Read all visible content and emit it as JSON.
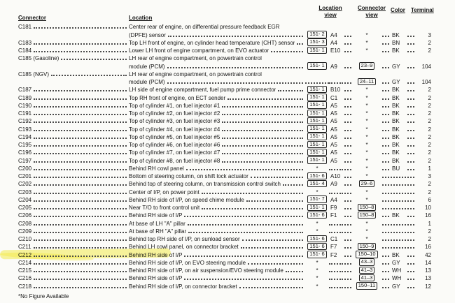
{
  "header": {
    "connector": "Connector",
    "location": "Location",
    "location_view_line1": "Location",
    "location_view_line2": "view",
    "connector_view_line1": "Connector",
    "connector_view_line2": "view",
    "color": "Color",
    "terminal": "Terminal"
  },
  "footnote": "*No Figure Available",
  "highlight_color": "#f2e93c",
  "rows": [
    {
      "id": "C181",
      "loc": [
        "Center rear of engine, on differential pressure feedback EGR",
        "(DPFE) sensor"
      ],
      "view": "151- 2",
      "grid": "A4",
      "conn": "*",
      "color": "BK",
      "term": "3"
    },
    {
      "id": "C183",
      "loc": [
        "Top LH front of engine, on cylinder head temperature (CHT) sensor"
      ],
      "view": "151- 3",
      "grid": "A4",
      "conn": "*",
      "color": "BN",
      "term": "2"
    },
    {
      "id": "C184",
      "loc": [
        "Lower LH front of engine compartment, on EVO actuator"
      ],
      "view": "151- 1",
      "grid": "E10",
      "conn": "*",
      "color": "BK",
      "term": "2"
    },
    {
      "id": "C185 (Gasoline)",
      "loc": [
        "LH rear of engine compartment, on powertrain control",
        "module (PCM)"
      ],
      "view": "151- 1",
      "grid": "A9",
      "conn": "23–9",
      "color": "GY",
      "term": "104"
    },
    {
      "id": "C185 (NGV)",
      "loc": [
        "LH rear of engine compartment, on powertrain control",
        "module (PCM)"
      ],
      "view": "",
      "grid": "",
      "conn": "24–11",
      "color": "GY",
      "term": "104"
    },
    {
      "id": "C187",
      "loc": [
        "LH side of engine compartment, fuel pump prime connector"
      ],
      "view": "151- 1",
      "grid": "B10",
      "conn": "*",
      "color": "BK",
      "term": "2"
    },
    {
      "id": "C189",
      "loc": [
        "Top RH front of engine, on ECT sender"
      ],
      "view": "151- 1",
      "grid": "C1",
      "conn": "*",
      "color": "BK",
      "term": "2"
    },
    {
      "id": "C190",
      "loc": [
        "Top of cylinder #1, on fuel injector #1"
      ],
      "view": "151- 1",
      "grid": "A5",
      "conn": "*",
      "color": "BK",
      "term": "2"
    },
    {
      "id": "C191",
      "loc": [
        "Top of cylinder #2, on fuel injector #2"
      ],
      "view": "151- 1",
      "grid": "A5",
      "conn": "*",
      "color": "BK",
      "term": "2"
    },
    {
      "id": "C192",
      "loc": [
        "Top of cylinder #3, on fuel injector #3"
      ],
      "view": "151- 1",
      "grid": "A5",
      "conn": "*",
      "color": "BK",
      "term": "2"
    },
    {
      "id": "C193",
      "loc": [
        "Top of cylinder #4, on fuel injector #4"
      ],
      "view": "151- 1",
      "grid": "A5",
      "conn": "*",
      "color": "BK",
      "term": "2"
    },
    {
      "id": "C194",
      "loc": [
        "Top of cylinder #5, on fuel injector #5"
      ],
      "view": "151- 1",
      "grid": "A5",
      "conn": "*",
      "color": "BK",
      "term": "2"
    },
    {
      "id": "C195",
      "loc": [
        "Top of cylinder #6, on fuel injector #6"
      ],
      "view": "151- 1",
      "grid": "A5",
      "conn": "*",
      "color": "BK",
      "term": "2"
    },
    {
      "id": "C196",
      "loc": [
        "Top of cylinder #7, on fuel injector #7"
      ],
      "view": "151- 1",
      "grid": "A5",
      "conn": "*",
      "color": "BK",
      "term": "2"
    },
    {
      "id": "C197",
      "loc": [
        "Top of cylinder #8, on fuel injector #8"
      ],
      "view": "151- 1",
      "grid": "A5",
      "conn": "*",
      "color": "BK",
      "term": "2"
    },
    {
      "id": "C200",
      "loc": [
        "Behind RH cowl panel"
      ],
      "view": "*",
      "grid": "",
      "conn": "*",
      "color": "BU",
      "term": "1"
    },
    {
      "id": "C201",
      "loc": [
        "Bottom of steering column, on shift lock actuator"
      ],
      "view": "151- 6",
      "grid": "A10",
      "conn": "*",
      "color": "",
      "term": "3"
    },
    {
      "id": "C202",
      "loc": [
        "Behind top of steering column, on transmission control switch"
      ],
      "view": "151- 4",
      "grid": "A9",
      "conn": "29–6",
      "color": "",
      "term": "2"
    },
    {
      "id": "C203",
      "loc": [
        "Center of I/P, on power point"
      ],
      "view": "*",
      "grid": "",
      "conn": "*",
      "color": "",
      "term": "2"
    },
    {
      "id": "C204",
      "loc": [
        "Behind RH side of I/P, on speed chime module"
      ],
      "view": "151- 7",
      "grid": "A4",
      "conn": "*",
      "color": "",
      "term": "6"
    },
    {
      "id": "C205",
      "loc": [
        "Near T/O to front control unit"
      ],
      "view": "151- 1",
      "grid": "F9",
      "conn": "150–8",
      "color": "",
      "term": "10"
    },
    {
      "id": "C206",
      "loc": [
        "Behind RH side of I/P"
      ],
      "view": "151- 6",
      "grid": "F1",
      "conn": "150–8",
      "color": "BK",
      "term": "16"
    },
    {
      "id": "C208",
      "loc": [
        "At base of LH \"A\" pillar"
      ],
      "view": "*",
      "grid": "",
      "conn": "*",
      "color": "",
      "term": "1"
    },
    {
      "id": "C209",
      "loc": [
        "At base of RH \"A\" pillar"
      ],
      "view": "*",
      "grid": "",
      "conn": "*",
      "color": "",
      "term": "2"
    },
    {
      "id": "C210",
      "loc": [
        "Behind top RH side of I/P, on sunload sensor"
      ],
      "view": "151- 6",
      "grid": "C1",
      "conn": "*",
      "color": "",
      "term": "2"
    },
    {
      "id": "C211",
      "loc": [
        "Behind LH cowl panel, on connector bracket"
      ],
      "view": "151- 6",
      "grid": "F7",
      "conn": "150–9",
      "color": "",
      "term": "16"
    },
    {
      "id": "C212",
      "loc": [
        "Behind RH side of I/P"
      ],
      "view": "151- 6",
      "grid": "F2",
      "conn": "150–10",
      "color": "BK",
      "term": "42",
      "hl": true
    },
    {
      "id": "C214",
      "loc": [
        "Behind RH side of I/P, on EVO steering module"
      ],
      "view": "*",
      "grid": "",
      "conn": "43–3",
      "color": "GY",
      "term": "14"
    },
    {
      "id": "C215",
      "loc": [
        "Behind RH side of I/P, on air suspension/EVO steering module"
      ],
      "view": "*",
      "grid": "",
      "conn": "41–3",
      "color": "WH",
      "term": "13"
    },
    {
      "id": "C216",
      "loc": [
        "Behind RH side of I/P"
      ],
      "view": "*",
      "grid": "",
      "conn": "41–3",
      "color": "WH",
      "term": "13"
    },
    {
      "id": "C218",
      "loc": [
        "Behind RH side of I/P, on connector bracket"
      ],
      "view": "*",
      "grid": "",
      "conn": "150–11",
      "color": "GY",
      "term": "12"
    }
  ]
}
